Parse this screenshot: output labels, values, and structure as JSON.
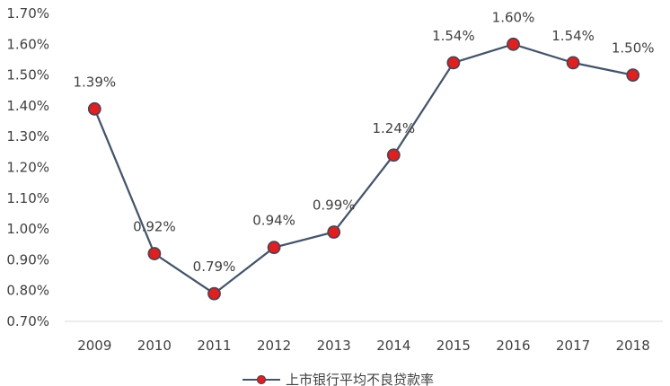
{
  "chart_data": {
    "type": "line",
    "title": "",
    "xlabel": "",
    "ylabel": "",
    "categories": [
      "2009",
      "2010",
      "2011",
      "2012",
      "2013",
      "2014",
      "2015",
      "2016",
      "2017",
      "2018"
    ],
    "series": [
      {
        "name": "上市银行平均不良贷款率",
        "values": [
          1.39,
          0.92,
          0.79,
          0.94,
          0.99,
          1.24,
          1.54,
          1.6,
          1.54,
          1.5
        ],
        "data_labels": [
          "1.39%",
          "0.92%",
          "0.79%",
          "0.94%",
          "0.99%",
          "1.24%",
          "1.54%",
          "1.60%",
          "1.54%",
          "1.50%"
        ]
      }
    ],
    "ylim": [
      0.7,
      1.7
    ],
    "y_ticks": [
      0.7,
      0.8,
      0.9,
      1.0,
      1.1,
      1.2,
      1.3,
      1.4,
      1.5,
      1.6,
      1.7
    ],
    "y_tick_labels": [
      "0.70%",
      "0.80%",
      "0.90%",
      "1.00%",
      "1.10%",
      "1.20%",
      "1.30%",
      "1.40%",
      "1.50%",
      "1.60%",
      "1.70%"
    ],
    "grid": false,
    "legend": "bottom-center",
    "colors": {
      "line": "#44546A",
      "marker_fill": "#E02020",
      "marker_stroke": "#5A3F4F",
      "text": "#404040",
      "axis": "#d9d9d9"
    }
  }
}
